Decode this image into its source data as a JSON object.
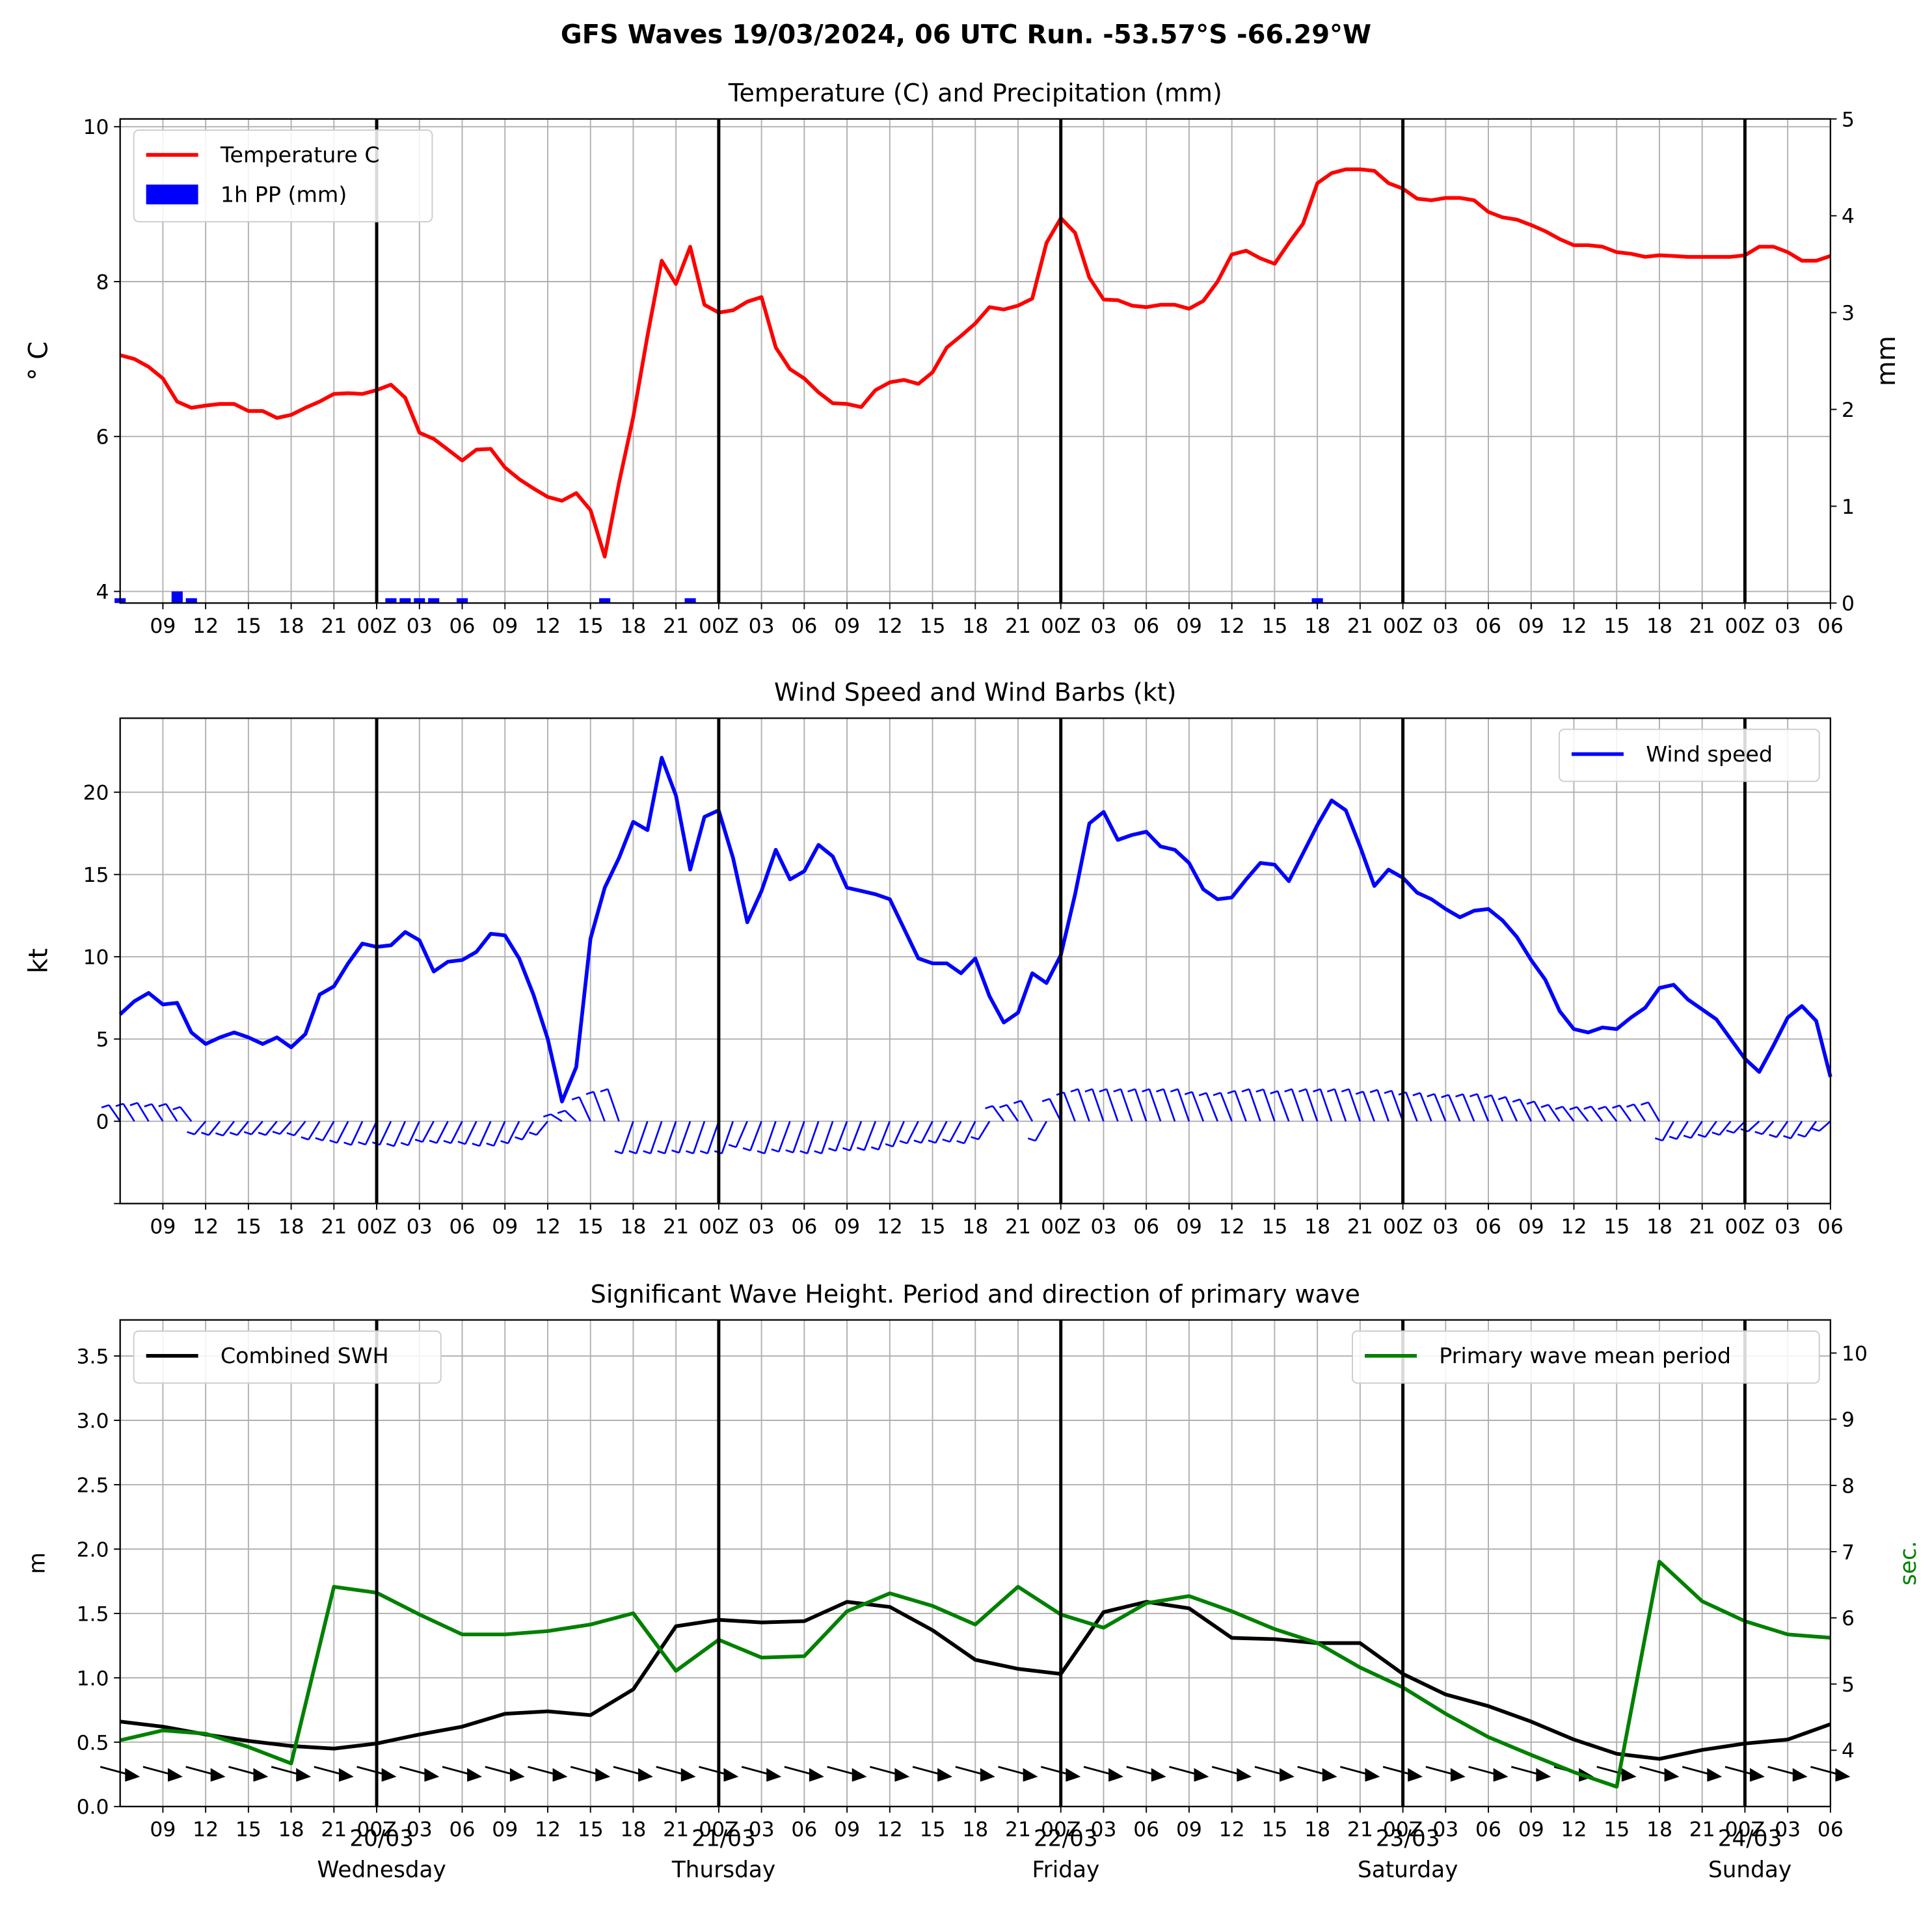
{
  "suptitle": "GFS Waves 19/03/2024, 06 UTC Run. -53.57°S -66.29°W",
  "colors": {
    "temperature": "#ff0000",
    "precip": "#0000ff",
    "wind": "#0000ff",
    "swh": "#000000",
    "period": "#008000",
    "grid": "#b0b0b0",
    "day_line": "#000000"
  },
  "x_axis": {
    "tick_labels_top": [
      "09",
      "12",
      "15",
      "18",
      "21",
      "00Z",
      "03",
      "06",
      "09",
      "12",
      "15",
      "18",
      "21",
      "00Z",
      "03",
      "06",
      "09",
      "12",
      "15",
      "18",
      "21",
      "00Z",
      "03",
      "06",
      "09",
      "12",
      "15",
      "18",
      "21",
      "00Z",
      "03",
      "06",
      "09",
      "12",
      "15",
      "18",
      "21",
      "00Z",
      "03",
      "06"
    ],
    "day_labels": [
      {
        "date": "20/03",
        "weekday": "Wednesday"
      },
      {
        "date": "21/03",
        "weekday": "Thursday"
      },
      {
        "date": "22/03",
        "weekday": "Friday"
      },
      {
        "date": "23/03",
        "weekday": "Saturday"
      },
      {
        "date": "24/03",
        "weekday": "Sunday"
      }
    ]
  },
  "panels": {
    "temp": {
      "title": "Temperature (C) and Precipitation (mm)",
      "ylabel_left": "$^\\circ$C",
      "ylabel_left_display": "° C",
      "ylabel_right": "mm",
      "legend": [
        "Temperature C",
        "1h PP (mm)"
      ]
    },
    "wind": {
      "title": "Wind Speed and Wind Barbs (kt)",
      "ylabel": "kt",
      "legend": [
        "Wind speed"
      ]
    },
    "wave": {
      "title": "Significant Wave Height. Period and direction of primary wave",
      "ylabel_left": "m",
      "ylabel_right": "sec.",
      "legend_left": [
        "Combined SWH"
      ],
      "legend_right": [
        "Primary wave mean period"
      ]
    }
  },
  "chart_data": [
    {
      "type": "line",
      "title": "Temperature (C) and Precipitation (mm)",
      "x_unit": "hours since 19/03/2024 06 UTC",
      "xlim": [
        0,
        120
      ],
      "ylim": [
        3.85,
        10.1
      ],
      "yticks": [
        4,
        6,
        8,
        10
      ],
      "ylim_right": [
        0,
        5
      ],
      "yticks_right": [
        0,
        1,
        2,
        3,
        4,
        5
      ],
      "series": [
        {
          "name": "Temperature C",
          "x": [
            0,
            1,
            2,
            3,
            4,
            5,
            6,
            7,
            8,
            9,
            10,
            11,
            12,
            13,
            14,
            15,
            16,
            17,
            18,
            19,
            20,
            21,
            22,
            23,
            24,
            25,
            26,
            27,
            28,
            29,
            30,
            31,
            32,
            33,
            34,
            35,
            36,
            37,
            38,
            39,
            40,
            41,
            42,
            43,
            44,
            45,
            46,
            47,
            48,
            49,
            50,
            51,
            52,
            53,
            54,
            55,
            56,
            57,
            58,
            59,
            60,
            61,
            62,
            63,
            64,
            65,
            66,
            67,
            68,
            69,
            70,
            71,
            72,
            73,
            74,
            75,
            76,
            77,
            78,
            79,
            80,
            81,
            82,
            83,
            84,
            85,
            86,
            87,
            88,
            89,
            90,
            91,
            92,
            93,
            94,
            95,
            96,
            97,
            98,
            99,
            100,
            101,
            102,
            103,
            104,
            105,
            106,
            107,
            108,
            109,
            110,
            111,
            112,
            113,
            114,
            115,
            116,
            117,
            118,
            119,
            120
          ],
          "values": [
            7.05,
            7.0,
            6.9,
            6.75,
            6.45,
            6.37,
            6.4,
            6.42,
            6.42,
            6.33,
            6.33,
            6.24,
            6.28,
            6.37,
            6.45,
            6.55,
            6.56,
            6.55,
            6.6,
            6.67,
            6.5,
            6.05,
            5.97,
            5.83,
            5.69,
            5.83,
            5.84,
            5.6,
            5.45,
            5.33,
            5.22,
            5.17,
            5.27,
            5.05,
            4.45,
            5.4,
            6.25,
            7.3,
            8.27,
            7.97,
            8.45,
            7.7,
            7.6,
            7.63,
            7.74,
            7.8,
            7.15,
            6.87,
            6.75,
            6.57,
            6.43,
            6.42,
            6.38,
            6.6,
            6.7,
            6.73,
            6.68,
            6.83,
            7.15,
            7.3,
            7.46,
            7.67,
            7.64,
            7.69,
            7.78,
            8.5,
            8.82,
            8.63,
            8.05,
            7.77,
            7.76,
            7.69,
            7.67,
            7.7,
            7.7,
            7.65,
            7.75,
            8.0,
            8.35,
            8.4,
            8.3,
            8.23,
            8.5,
            8.75,
            9.27,
            9.4,
            9.45,
            9.45,
            9.43,
            9.27,
            9.2,
            9.07,
            9.05,
            9.08,
            9.08,
            9.05,
            8.9,
            8.83,
            8.8,
            8.73,
            8.65,
            8.55,
            8.47,
            8.47,
            8.45,
            8.38,
            8.36,
            8.32,
            8.34,
            8.33,
            8.32,
            8.32,
            8.32,
            8.32,
            8.34,
            8.45,
            8.45,
            8.38,
            8.27,
            8.27,
            8.33
          ]
        },
        {
          "name": "1h PP (mm)",
          "type": "bar",
          "axis": "right",
          "x": [
            0,
            4,
            5,
            19,
            20,
            21,
            22,
            24,
            34,
            40,
            84
          ],
          "values": [
            0.05,
            0.12,
            0.05,
            0.05,
            0.05,
            0.05,
            0.05,
            0.05,
            0.05,
            0.05,
            0.05
          ]
        }
      ]
    },
    {
      "type": "line",
      "title": "Wind Speed and Wind Barbs (kt)",
      "x_unit": "hours since 19/03/2024 06 UTC",
      "xlim": [
        0,
        120
      ],
      "ylim": [
        -5,
        24.5
      ],
      "yticks": [
        0,
        5,
        10,
        15,
        20
      ],
      "series": [
        {
          "name": "Wind speed",
          "x": [
            0,
            1,
            2,
            3,
            4,
            5,
            6,
            7,
            8,
            9,
            10,
            11,
            12,
            13,
            14,
            15,
            16,
            17,
            18,
            19,
            20,
            21,
            22,
            23,
            24,
            25,
            26,
            27,
            28,
            29,
            30,
            31,
            32,
            33,
            34,
            35,
            36,
            37,
            38,
            39,
            40,
            41,
            42,
            43,
            44,
            45,
            46,
            47,
            48,
            49,
            50,
            51,
            52,
            53,
            54,
            55,
            56,
            57,
            58,
            59,
            60,
            61,
            62,
            63,
            64,
            65,
            66,
            67,
            68,
            69,
            70,
            71,
            72,
            73,
            74,
            75,
            76,
            77,
            78,
            79,
            80,
            81,
            82,
            83,
            84,
            85,
            86,
            87,
            88,
            89,
            90,
            91,
            92,
            93,
            94,
            95,
            96,
            97,
            98,
            99,
            100,
            101,
            102,
            103,
            104,
            105,
            106,
            107,
            108,
            109,
            110,
            111,
            112,
            113,
            114,
            115,
            116,
            117,
            118,
            119,
            120
          ],
          "values": [
            6.5,
            7.3,
            7.8,
            7.1,
            7.2,
            5.4,
            4.7,
            5.1,
            5.4,
            5.1,
            4.7,
            5.1,
            4.5,
            5.3,
            7.7,
            8.2,
            9.6,
            10.8,
            10.6,
            10.7,
            11.5,
            11.0,
            9.1,
            9.7,
            9.8,
            10.3,
            11.4,
            11.3,
            9.9,
            7.7,
            5.0,
            1.2,
            3.3,
            11.1,
            14.2,
            16.0,
            18.2,
            17.7,
            22.1,
            19.8,
            15.3,
            18.5,
            18.9,
            16.0,
            12.1,
            14.0,
            16.5,
            14.7,
            15.2,
            16.8,
            16.1,
            14.2,
            14.0,
            13.8,
            13.5,
            11.7,
            9.9,
            9.6,
            9.6,
            9.0,
            9.9,
            7.6,
            6.0,
            6.6,
            9.0,
            8.4,
            10.1,
            13.8,
            18.1,
            18.8,
            17.1,
            17.4,
            17.6,
            16.7,
            16.5,
            15.7,
            14.1,
            13.5,
            13.6,
            14.7,
            15.7,
            15.6,
            14.6,
            16.3,
            18.0,
            19.5,
            18.9,
            16.7,
            14.3,
            15.3,
            14.8,
            13.9,
            13.5,
            12.9,
            12.4,
            12.8,
            12.9,
            12.2,
            11.2,
            9.8,
            8.6,
            6.7,
            5.6,
            5.4,
            5.7,
            5.6,
            6.3,
            6.9,
            8.1,
            8.3,
            7.4,
            6.8,
            6.2,
            5.0,
            3.8,
            3.0,
            4.6,
            6.3,
            7.0,
            6.1,
            2.7
          ]
        }
      ]
    },
    {
      "type": "line",
      "title": "Significant Wave Height. Period and direction of primary wave",
      "x_unit": "hours since 19/03/2024 06 UTC",
      "xlim": [
        0,
        120
      ],
      "ylim": [
        0,
        3.78
      ],
      "yticks": [
        0.0,
        0.5,
        1.0,
        1.5,
        2.0,
        2.5,
        3.0,
        3.5
      ],
      "ylim_right": [
        3.15,
        10.5
      ],
      "yticks_right": [
        4,
        5,
        6,
        7,
        8,
        9,
        10
      ],
      "series": [
        {
          "name": "Combined SWH",
          "axis": "left",
          "x": [
            0,
            3,
            6,
            9,
            12,
            15,
            18,
            21,
            24,
            27,
            30,
            33,
            36,
            39,
            42,
            45,
            48,
            51,
            54,
            57,
            60,
            63,
            66,
            69,
            72,
            75,
            78,
            81,
            84,
            87,
            90,
            93,
            96,
            99,
            102,
            105,
            108,
            111,
            114,
            117,
            120
          ],
          "values": [
            0.66,
            0.62,
            0.56,
            0.51,
            0.47,
            0.45,
            0.49,
            0.56,
            0.62,
            0.72,
            0.74,
            0.71,
            0.91,
            1.4,
            1.45,
            1.43,
            1.44,
            1.59,
            1.55,
            1.37,
            1.14,
            1.07,
            1.03,
            1.51,
            1.59,
            1.54,
            1.31,
            1.3,
            1.27,
            1.27,
            1.03,
            0.87,
            0.78,
            0.66,
            0.52,
            0.41,
            0.37,
            0.44,
            0.49,
            0.52,
            0.64
          ]
        },
        {
          "name": "Primary wave mean period",
          "axis": "right",
          "x": [
            0,
            3,
            6,
            9,
            12,
            15,
            18,
            21,
            24,
            27,
            30,
            33,
            36,
            39,
            42,
            45,
            48,
            51,
            54,
            57,
            60,
            63,
            66,
            69,
            72,
            75,
            78,
            81,
            84,
            87,
            90,
            93,
            96,
            99,
            102,
            105,
            108,
            111,
            114,
            117,
            120
          ],
          "values": [
            4.15,
            4.3,
            4.25,
            4.05,
            3.8,
            6.47,
            6.38,
            6.05,
            5.75,
            5.75,
            5.8,
            5.9,
            6.07,
            5.2,
            5.67,
            5.4,
            5.42,
            6.1,
            6.37,
            6.18,
            5.9,
            6.47,
            6.05,
            5.85,
            6.22,
            6.33,
            6.1,
            5.83,
            5.62,
            5.25,
            4.95,
            4.55,
            4.2,
            3.93,
            3.67,
            3.45,
            6.85,
            6.25,
            5.95,
            5.75,
            5.7
          ]
        }
      ]
    }
  ]
}
